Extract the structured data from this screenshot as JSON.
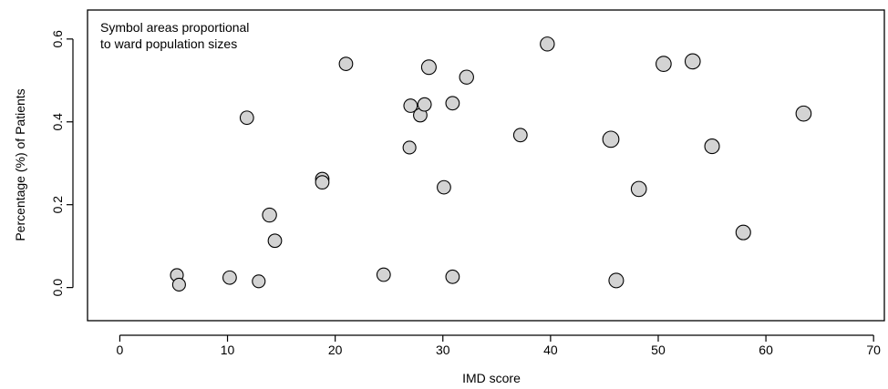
{
  "chart_data": {
    "type": "scatter",
    "title": "",
    "xlabel": "IMD score",
    "ylabel": "Percentage (%) of Patients",
    "xlim": [
      -3,
      71
    ],
    "ylim": [
      -0.08,
      0.67
    ],
    "x_ticks": [
      0,
      10,
      20,
      30,
      40,
      50,
      60,
      70
    ],
    "x_tick_labels": [
      "0",
      "10",
      "20",
      "30",
      "40",
      "50",
      "60",
      "70"
    ],
    "y_ticks": [
      0.0,
      0.2,
      0.4,
      0.6
    ],
    "y_tick_labels": [
      "0.0",
      "0.2",
      "0.4",
      "0.6"
    ],
    "annotation": [
      "Symbol areas proportional",
      "to ward population sizes"
    ],
    "grid": false,
    "marker_fill": "#d3d3d3",
    "marker_edge": "#000000",
    "points": [
      {
        "x": 5.3,
        "y": 0.03,
        "size": 1.0
      },
      {
        "x": 5.5,
        "y": 0.007,
        "size": 1.0
      },
      {
        "x": 10.2,
        "y": 0.024,
        "size": 1.1
      },
      {
        "x": 11.8,
        "y": 0.41,
        "size": 1.1
      },
      {
        "x": 12.9,
        "y": 0.015,
        "size": 1.0
      },
      {
        "x": 13.9,
        "y": 0.175,
        "size": 1.2
      },
      {
        "x": 14.4,
        "y": 0.113,
        "size": 1.1
      },
      {
        "x": 18.8,
        "y": 0.262,
        "size": 1.1
      },
      {
        "x": 18.8,
        "y": 0.254,
        "size": 1.1
      },
      {
        "x": 21.0,
        "y": 0.54,
        "size": 1.1
      },
      {
        "x": 24.5,
        "y": 0.031,
        "size": 1.1
      },
      {
        "x": 26.9,
        "y": 0.338,
        "size": 1.0
      },
      {
        "x": 27.0,
        "y": 0.439,
        "size": 1.1
      },
      {
        "x": 27.9,
        "y": 0.416,
        "size": 1.1
      },
      {
        "x": 28.3,
        "y": 0.442,
        "size": 1.1
      },
      {
        "x": 28.7,
        "y": 0.532,
        "size": 1.3
      },
      {
        "x": 30.1,
        "y": 0.242,
        "size": 1.1
      },
      {
        "x": 30.9,
        "y": 0.026,
        "size": 1.1
      },
      {
        "x": 30.9,
        "y": 0.445,
        "size": 1.1
      },
      {
        "x": 32.2,
        "y": 0.508,
        "size": 1.2
      },
      {
        "x": 37.2,
        "y": 0.368,
        "size": 1.1
      },
      {
        "x": 39.7,
        "y": 0.588,
        "size": 1.2
      },
      {
        "x": 45.6,
        "y": 0.358,
        "size": 1.6
      },
      {
        "x": 46.1,
        "y": 0.017,
        "size": 1.3
      },
      {
        "x": 48.2,
        "y": 0.238,
        "size": 1.4
      },
      {
        "x": 50.5,
        "y": 0.54,
        "size": 1.4
      },
      {
        "x": 53.2,
        "y": 0.546,
        "size": 1.4
      },
      {
        "x": 55.0,
        "y": 0.341,
        "size": 1.3
      },
      {
        "x": 57.9,
        "y": 0.133,
        "size": 1.3
      },
      {
        "x": 63.5,
        "y": 0.42,
        "size": 1.4
      }
    ]
  }
}
